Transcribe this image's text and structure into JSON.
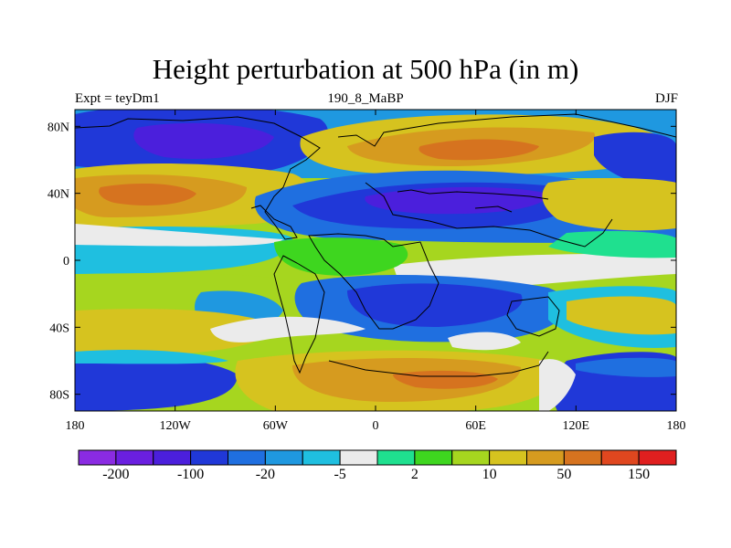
{
  "chart_data": {
    "type": "heatmap",
    "title": "Height perturbation at 500 hPa (in m)",
    "left_subtitle": "Expt = teyDm1",
    "center_subtitle": "190_8_MaBP",
    "right_subtitle": "DJF",
    "xlim": [
      -180,
      180
    ],
    "ylim": [
      -90,
      90
    ],
    "x_ticks": [
      {
        "value": -180,
        "label": "180"
      },
      {
        "value": -120,
        "label": "120W"
      },
      {
        "value": -60,
        "label": "60W"
      },
      {
        "value": 0,
        "label": "0"
      },
      {
        "value": 60,
        "label": "60E"
      },
      {
        "value": 120,
        "label": "120E"
      },
      {
        "value": 180,
        "label": "180"
      }
    ],
    "y_ticks": [
      {
        "value": 80,
        "label": "80N"
      },
      {
        "value": 40,
        "label": "40N"
      },
      {
        "value": 0,
        "label": "0"
      },
      {
        "value": -40,
        "label": "40S"
      },
      {
        "value": -80,
        "label": "80S"
      }
    ],
    "colorbar": {
      "colors": [
        "#8a2be2",
        "#6a1fe0",
        "#4b1fdc",
        "#2038d8",
        "#1f6fe0",
        "#1f98e0",
        "#1fbfe0",
        "#ebebeb",
        "#1fe08f",
        "#3ed61f",
        "#a6d61f",
        "#d6c31f",
        "#d69b1f",
        "#d6731f",
        "#e0471f",
        "#e01f1f"
      ],
      "labels": [
        {
          "value": "-200",
          "boundary": 1
        },
        {
          "value": "-100",
          "boundary": 3
        },
        {
          "value": "-20",
          "boundary": 5
        },
        {
          "value": "-5",
          "boundary": 7
        },
        {
          "value": "2",
          "boundary": 9
        },
        {
          "value": "10",
          "boundary": 11
        },
        {
          "value": "50",
          "boundary": 13
        },
        {
          "value": "150",
          "boundary": 15
        }
      ]
    },
    "field": {
      "description": "Zonal wave pattern of 500 hPa height perturbation (approximate)",
      "features": [
        {
          "name": "high-north-pacific",
          "lon": -150,
          "lat": 40,
          "value": 120
        },
        {
          "name": "low-north-america",
          "lon": -110,
          "lat": 75,
          "value": -150
        },
        {
          "name": "high-eurasia",
          "lon": 60,
          "lat": 70,
          "value": 110
        },
        {
          "name": "low-central-asia",
          "lon": 60,
          "lat": 38,
          "value": -180
        },
        {
          "name": "low-southern-ocean-indian",
          "lon": 20,
          "lat": -30,
          "value": -90
        },
        {
          "name": "high-antarctic",
          "lon": 30,
          "lat": -72,
          "value": 140
        },
        {
          "name": "low-south-pacific",
          "lon": -160,
          "lat": -72,
          "value": -150
        },
        {
          "name": "low-east-pacific",
          "lon": 165,
          "lat": -72,
          "value": -120
        }
      ]
    }
  }
}
